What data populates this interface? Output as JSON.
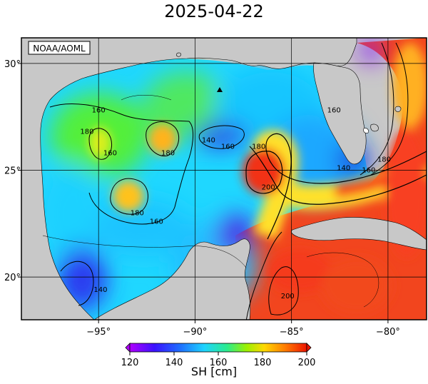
{
  "title": "2025-04-22",
  "source_label": "NOAA/AOML",
  "map": {
    "lon_ticks": [
      {
        "value": -95,
        "label": "−95°"
      },
      {
        "value": -90,
        "label": "−90°"
      },
      {
        "value": -85,
        "label": "−85°"
      },
      {
        "value": -80,
        "label": "−80°"
      }
    ],
    "lat_ticks": [
      {
        "value": 30,
        "label": "30°"
      },
      {
        "value": 25,
        "label": "25°"
      },
      {
        "value": 20,
        "label": "20°"
      }
    ],
    "lon_range": [
      -99,
      -78
    ],
    "lat_range": [
      18,
      31.2
    ],
    "contour_labels": [
      {
        "text": "160",
        "lon": -95.0,
        "lat": 27.7
      },
      {
        "text": "180",
        "lon": -95.6,
        "lat": 26.7
      },
      {
        "text": "160",
        "lon": -94.4,
        "lat": 25.7
      },
      {
        "text": "180",
        "lon": -91.4,
        "lat": 25.7
      },
      {
        "text": "140",
        "lon": -89.3,
        "lat": 26.3
      },
      {
        "text": "160",
        "lon": -88.3,
        "lat": 26.0
      },
      {
        "text": "180",
        "lon": -86.7,
        "lat": 26.0
      },
      {
        "text": "200",
        "lon": -86.2,
        "lat": 24.1
      },
      {
        "text": "180",
        "lon": -93.0,
        "lat": 22.9
      },
      {
        "text": "160",
        "lon": -92.0,
        "lat": 22.5
      },
      {
        "text": "140",
        "lon": -82.3,
        "lat": 25.0
      },
      {
        "text": "160",
        "lon": -81.0,
        "lat": 24.9
      },
      {
        "text": "180",
        "lon": -80.2,
        "lat": 25.4
      },
      {
        "text": "160",
        "lon": -82.8,
        "lat": 27.7
      },
      {
        "text": "200",
        "lon": -85.2,
        "lat": 19.0
      },
      {
        "text": "140",
        "lon": -94.9,
        "lat": 19.3
      }
    ]
  },
  "colorbar": {
    "ticks": [
      "120",
      "140",
      "160",
      "180",
      "200"
    ],
    "label": "SH [cm]",
    "stops": [
      "#9b00ff",
      "#1f1fff",
      "#00c8ff",
      "#00e68c",
      "#8cf000",
      "#ffd400",
      "#ff7800",
      "#f21c00"
    ]
  },
  "colors": {
    "land": "#c8c8c8",
    "water_low": "#1c2fe6",
    "water_cyan": "#19d2ff",
    "water_green": "#3bea5a",
    "water_yellow": "#ffd72a",
    "water_red": "#f5331e"
  }
}
